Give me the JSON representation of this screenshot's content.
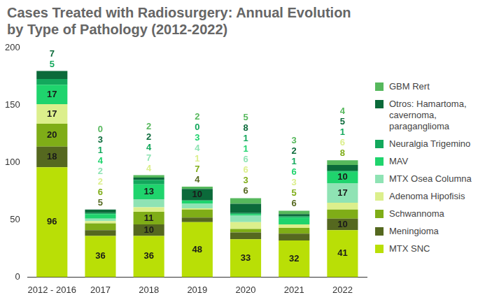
{
  "chart_data": {
    "type": "bar",
    "title": "Cases Treated with Radiosurgery: Annual Evolution by Type of Pathology (2012-2022)",
    "categories": [
      "2012 - 2016",
      "2017",
      "2018",
      "2019",
      "2020",
      "2021",
      "2022"
    ],
    "series": [
      {
        "name": "MTX SNC",
        "color": "#b9df06",
        "values": [
          96,
          36,
          36,
          48,
          33,
          32,
          41
        ]
      },
      {
        "name": "Meningioma",
        "color": "#55681f",
        "values": [
          18,
          5,
          10,
          4,
          6,
          6,
          10
        ]
      },
      {
        "name": "Schwannoma",
        "color": "#7fad17",
        "values": [
          20,
          6,
          11,
          7,
          3,
          5,
          8
        ]
      },
      {
        "name": "Adenoma Hipofisis",
        "color": "#dcef8c",
        "values": [
          17,
          2,
          4,
          1,
          6,
          3,
          6
        ]
      },
      {
        "name": "MTX Osea Columna",
        "color": "#8fe3b4",
        "values": [
          null,
          2,
          7,
          4,
          6,
          null,
          17
        ]
      },
      {
        "name": "MAV",
        "color": "#1fd46d",
        "values": [
          17,
          4,
          13,
          3,
          1,
          6,
          10
        ]
      },
      {
        "name": "Neuralgia Trigemino",
        "color": "#13a85c",
        "values": [
          5,
          1,
          4,
          0,
          1,
          1,
          1
        ]
      },
      {
        "name": "Otros: Hamartoma, cavernoma, paraganglioma",
        "color": "#0b6a3a",
        "values": [
          7,
          3,
          2,
          10,
          8,
          2,
          5
        ]
      },
      {
        "name": "GBM Rert",
        "color": "#56b85c",
        "values": [
          null,
          0,
          2,
          2,
          5,
          3,
          4
        ]
      }
    ],
    "stacked": true,
    "data_labels": true,
    "legend": "right",
    "grid": false,
    "ylim": [
      0,
      200
    ],
    "yticks": [
      0,
      50,
      100,
      150,
      200
    ]
  }
}
